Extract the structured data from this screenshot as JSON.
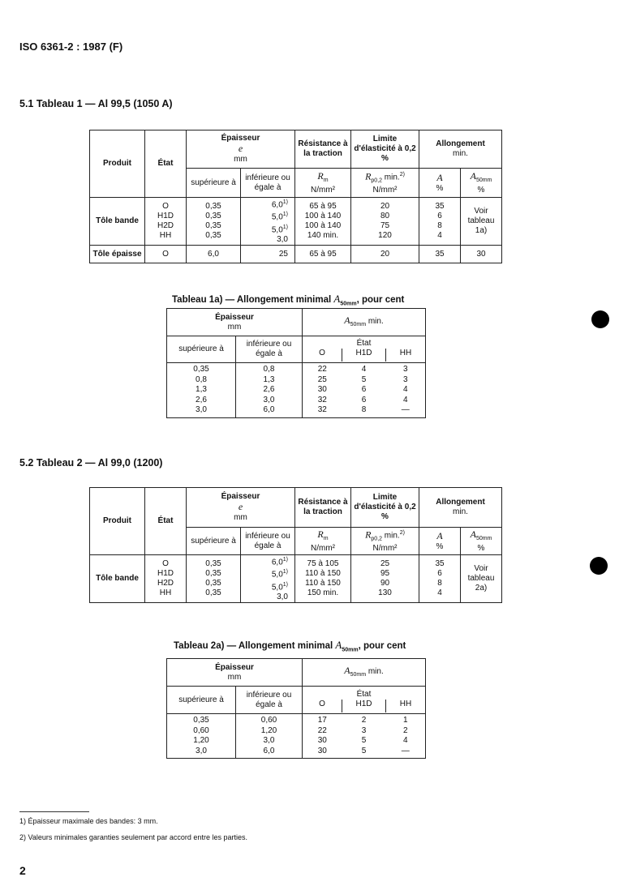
{
  "header": "ISO 6361-2 : 1987 (F)",
  "section1": "5.1  Tableau 1 — Al 99,5 (1050 A)",
  "section2": "5.2  Tableau 2 — Al 99,0 (1200)",
  "main_headers": {
    "produit": "Produit",
    "etat": "État",
    "epaisseur": "Épaisseur",
    "e": "e",
    "mm": "mm",
    "resistance": "Résistance à la traction",
    "limite": "Limite d'élasticité à 0,2 %",
    "allongement": "Allongement",
    "min": "min.",
    "sup": "supérieure à",
    "inf": "inférieure ou égale à",
    "rm": "R",
    "rm_sub": "m",
    "rm_unit": "N/mm²",
    "rp": "R",
    "rp_sub": "p0,2",
    "rp_min": "min. 2)",
    "rp_unit": "N/mm²",
    "a": "A",
    "a_unit": "%",
    "a50": "A",
    "a50_sub": "50mm",
    "a50_unit": "%"
  },
  "table1": {
    "groups": [
      {
        "produit": "Tôle bande",
        "rows": [
          [
            "O",
            "0,35",
            "6,0 1)",
            "65 à  95",
            "20",
            "35"
          ],
          [
            "H1D",
            "0,35",
            "5,0 1)",
            "100 à 140",
            "80",
            "6"
          ],
          [
            "H2D",
            "0,35",
            "5,0 1)",
            "100 à 140",
            "75",
            "8"
          ],
          [
            "HH",
            "0,35",
            "3,0",
            "140 min.",
            "120",
            "4"
          ]
        ],
        "a50": "Voir tableau 1a)"
      },
      {
        "produit": "Tôle épaisse",
        "rows": [
          [
            "O",
            "6,0",
            "25",
            "65 à  95",
            "20",
            "35"
          ]
        ],
        "a50": "30"
      }
    ]
  },
  "table1a": {
    "title": "Tableau 1a) — Allongement minimal A50mm, pour cent",
    "title_pre": "Tableau 1a) — Allongement minimal ",
    "title_post": ", pour cent",
    "rows": [
      [
        "0,35",
        "0,8",
        "22",
        "4",
        "3"
      ],
      [
        "0,8",
        "1,3",
        "25",
        "5",
        "3"
      ],
      [
        "1,3",
        "2,6",
        "30",
        "6",
        "4"
      ],
      [
        "2,6",
        "3,0",
        "32",
        "6",
        "4"
      ],
      [
        "3,0",
        "6,0",
        "32",
        "8",
        "—"
      ]
    ]
  },
  "table2": {
    "groups": [
      {
        "produit": "Tôle bande",
        "rows": [
          [
            "O",
            "0,35",
            "6,0 1)",
            "75 à 105",
            "25",
            "35"
          ],
          [
            "H1D",
            "0,35",
            "5,0 1)",
            "110 à 150",
            "95",
            "6"
          ],
          [
            "H2D",
            "0,35",
            "5,0 1)",
            "110 à 150",
            "90",
            "8"
          ],
          [
            "HH",
            "0,35",
            "3,0",
            "150 min.",
            "130",
            "4"
          ]
        ],
        "a50": "Voir tableau 2a)"
      }
    ]
  },
  "table2a": {
    "title_pre": "Tableau 2a) — Allongement minimal ",
    "title_post": ", pour cent",
    "rows": [
      [
        "0,35",
        "0,60",
        "17",
        "2",
        "1"
      ],
      [
        "0,60",
        "1,20",
        "22",
        "3",
        "2"
      ],
      [
        "1,20",
        "3,0",
        "30",
        "5",
        "4"
      ],
      [
        "3,0",
        "6,0",
        "30",
        "5",
        "—"
      ]
    ]
  },
  "sub_headers": {
    "epaisseur": "Épaisseur",
    "mm": "mm",
    "a50": "A",
    "a50_sub": "50mm",
    "a50_min": " min.",
    "sup": "supérieure à",
    "inf": "inférieure ou égale à",
    "etat": "État",
    "o": "O",
    "h1d": "H1D",
    "hh": "HH"
  },
  "footnotes": [
    "1)  Épaisseur maximale des bandes: 3 mm.",
    "2)  Valeurs minimales garanties seulement par accord entre les parties."
  ],
  "page_number": "2"
}
